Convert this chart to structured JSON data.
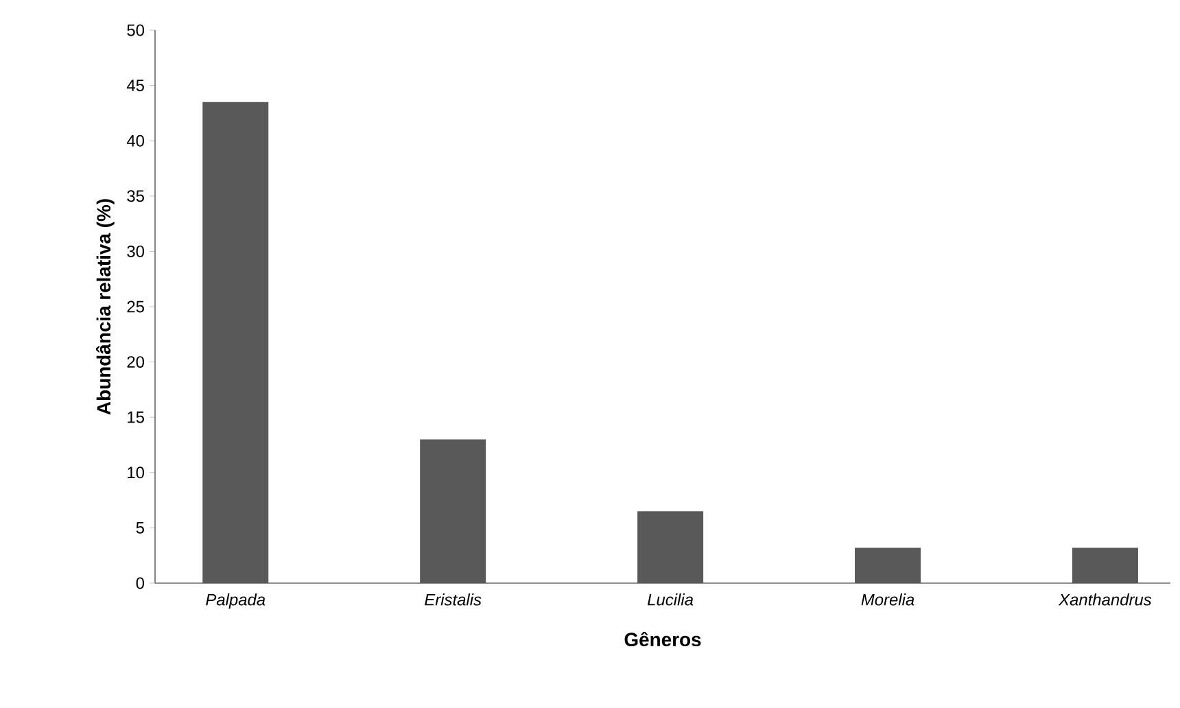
{
  "chart_data": {
    "type": "bar",
    "xlabel": "Gêneros",
    "ylabel": "Abundância relativa (%)",
    "categories": [
      "Palpada",
      "Eristalis",
      "Lucilia",
      "Morelia",
      "Xanthandrus"
    ],
    "values": [
      43.5,
      13,
      6.5,
      3.2,
      3.2
    ],
    "color": "#595959",
    "ylim": [
      0,
      50
    ],
    "yticks": [
      0,
      5,
      10,
      15,
      20,
      25,
      30,
      35,
      40,
      45,
      50
    ],
    "grid": false
  }
}
